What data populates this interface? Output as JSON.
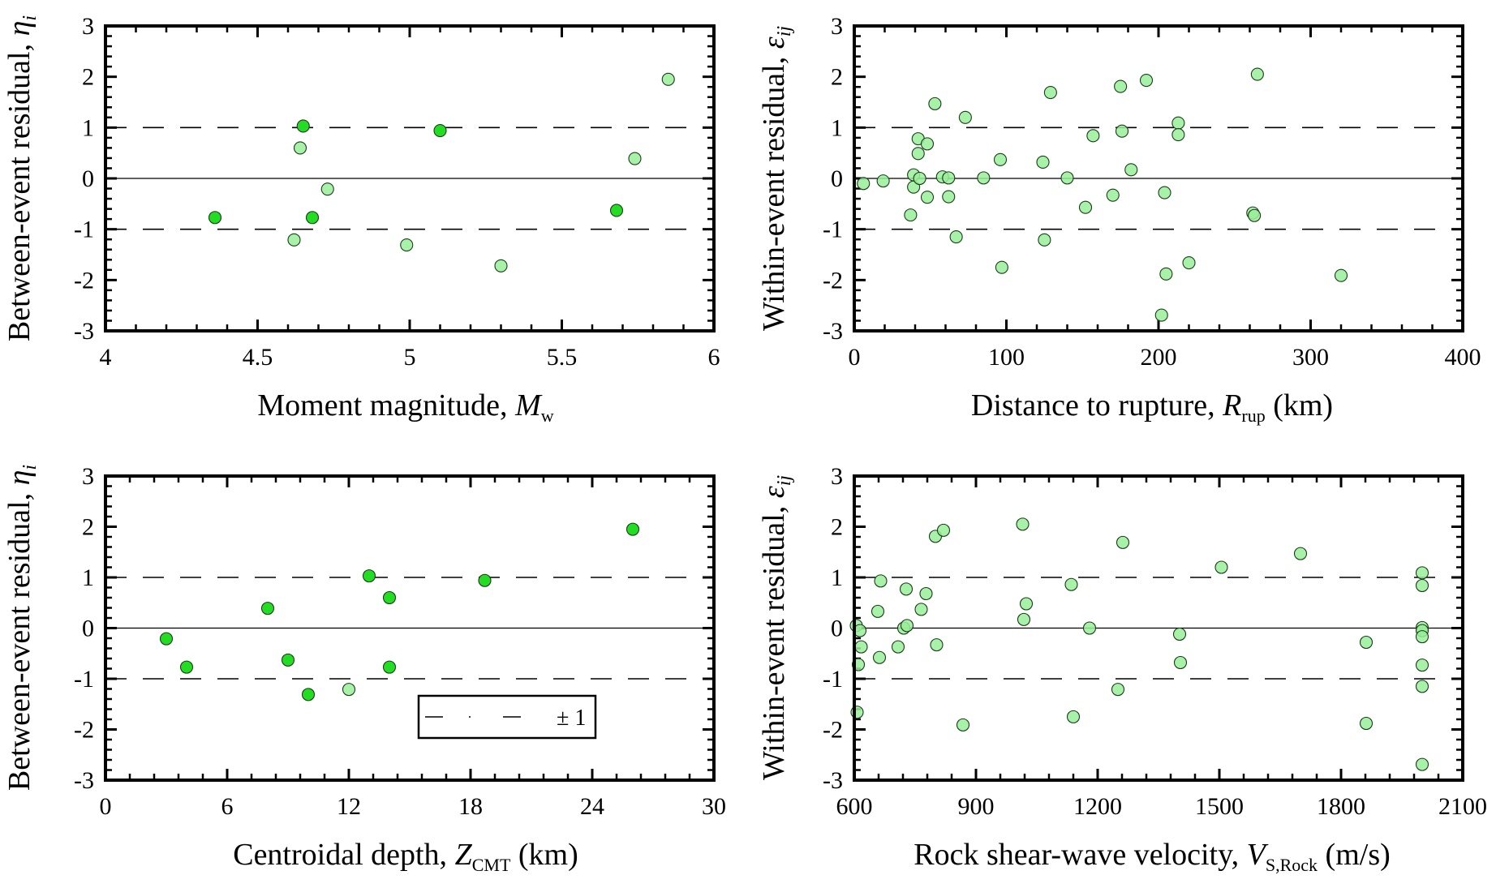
{
  "chart_data": [
    {
      "type": "scatter",
      "xlabel": "Moment magnitude, M_w",
      "xlabel_parts": {
        "main": "Moment magnitude, ",
        "symbol": "M",
        "sub": "w",
        "after": ""
      },
      "ylabel": "Between-event residual, η_i",
      "ylabel_parts": {
        "main": "Between-event residual, ",
        "symbol": "η",
        "sub": "i"
      },
      "xlim": [
        4,
        6
      ],
      "ylim": [
        -3,
        3
      ],
      "xticks": [
        "4",
        "4.5",
        "5",
        "5.5",
        "6"
      ],
      "yticks": [
        "-3",
        "-2",
        "-1",
        "0",
        "1",
        "2",
        "3"
      ],
      "reference_lines": {
        "solid": 0,
        "dashed": [
          1,
          -1
        ]
      },
      "points": [
        {
          "x": 4.36,
          "y": -0.77,
          "style": "dark"
        },
        {
          "x": 4.62,
          "y": -1.21,
          "style": "light"
        },
        {
          "x": 4.64,
          "y": 0.6,
          "style": "light"
        },
        {
          "x": 4.65,
          "y": 1.03,
          "style": "dark"
        },
        {
          "x": 4.68,
          "y": -0.77,
          "style": "dark"
        },
        {
          "x": 4.73,
          "y": -0.21,
          "style": "light"
        },
        {
          "x": 4.99,
          "y": -1.31,
          "style": "light"
        },
        {
          "x": 5.1,
          "y": 0.94,
          "style": "dark"
        },
        {
          "x": 5.3,
          "y": -1.72,
          "style": "light"
        },
        {
          "x": 5.68,
          "y": -0.63,
          "style": "dark"
        },
        {
          "x": 5.74,
          "y": 0.39,
          "style": "light"
        },
        {
          "x": 5.85,
          "y": 1.95,
          "style": "light"
        }
      ]
    },
    {
      "type": "scatter",
      "xlabel": "Distance to rupture, R_rup (km)",
      "xlabel_parts": {
        "main": "Distance to rupture, ",
        "symbol": "R",
        "sub": "rup",
        "after": " (km)"
      },
      "ylabel": "Within-event residual, ε_ij",
      "ylabel_parts": {
        "main": "Within-event residual, ",
        "symbol": "ε",
        "sub": "ij"
      },
      "xlim": [
        0,
        400
      ],
      "ylim": [
        -3,
        3
      ],
      "xticks": [
        "0",
        "100",
        "200",
        "300",
        "400"
      ],
      "yticks": [
        "-3",
        "-2",
        "-1",
        "0",
        "1",
        "2",
        "3"
      ],
      "reference_lines": {
        "solid": 0,
        "dashed": [
          1,
          -1
        ]
      },
      "points": [
        {
          "x": 6,
          "y": -0.1,
          "style": "light"
        },
        {
          "x": 19,
          "y": -0.05,
          "style": "light"
        },
        {
          "x": 37,
          "y": -0.72,
          "style": "light"
        },
        {
          "x": 39,
          "y": 0.07,
          "style": "light"
        },
        {
          "x": 39,
          "y": -0.17,
          "style": "light"
        },
        {
          "x": 42,
          "y": 0.78,
          "style": "light"
        },
        {
          "x": 42,
          "y": 0.49,
          "style": "light"
        },
        {
          "x": 43,
          "y": 0.0,
          "style": "light"
        },
        {
          "x": 48,
          "y": 0.68,
          "style": "light"
        },
        {
          "x": 48,
          "y": -0.37,
          "style": "light"
        },
        {
          "x": 53,
          "y": 1.47,
          "style": "light"
        },
        {
          "x": 58,
          "y": 0.03,
          "style": "light"
        },
        {
          "x": 62,
          "y": 0.01,
          "style": "light"
        },
        {
          "x": 62,
          "y": -0.36,
          "style": "light"
        },
        {
          "x": 67,
          "y": -1.15,
          "style": "light"
        },
        {
          "x": 73,
          "y": 1.2,
          "style": "light"
        },
        {
          "x": 85,
          "y": 0.01,
          "style": "light"
        },
        {
          "x": 96,
          "y": 0.37,
          "style": "light"
        },
        {
          "x": 97,
          "y": -1.75,
          "style": "light"
        },
        {
          "x": 124,
          "y": 0.32,
          "style": "light"
        },
        {
          "x": 125,
          "y": -1.21,
          "style": "light"
        },
        {
          "x": 129,
          "y": 1.69,
          "style": "light"
        },
        {
          "x": 140,
          "y": 0.01,
          "style": "light"
        },
        {
          "x": 152,
          "y": -0.57,
          "style": "light"
        },
        {
          "x": 157,
          "y": 0.84,
          "style": "light"
        },
        {
          "x": 170,
          "y": -0.33,
          "style": "light"
        },
        {
          "x": 175,
          "y": 1.81,
          "style": "light"
        },
        {
          "x": 176,
          "y": 0.93,
          "style": "light"
        },
        {
          "x": 182,
          "y": 0.17,
          "style": "light"
        },
        {
          "x": 192,
          "y": 1.93,
          "style": "light"
        },
        {
          "x": 202,
          "y": -2.69,
          "style": "light"
        },
        {
          "x": 204,
          "y": -0.28,
          "style": "light"
        },
        {
          "x": 205,
          "y": -1.88,
          "style": "light"
        },
        {
          "x": 213,
          "y": 1.09,
          "style": "light"
        },
        {
          "x": 213,
          "y": 0.86,
          "style": "light"
        },
        {
          "x": 220,
          "y": -1.66,
          "style": "light"
        },
        {
          "x": 262,
          "y": -0.68,
          "style": "light"
        },
        {
          "x": 263,
          "y": -0.73,
          "style": "light"
        },
        {
          "x": 265,
          "y": 2.05,
          "style": "light"
        },
        {
          "x": 320,
          "y": -1.91,
          "style": "light"
        }
      ]
    },
    {
      "type": "scatter",
      "xlabel": "Centroidal depth, Z_CMT (km)",
      "xlabel_parts": {
        "main": "Centroidal depth, ",
        "symbol": "Z",
        "sub": "CMT",
        "after": " (km)"
      },
      "ylabel": "Between-event residual, η_i",
      "ylabel_parts": {
        "main": "Between-event residual, ",
        "symbol": "η",
        "sub": "i"
      },
      "xlim": [
        0,
        30
      ],
      "ylim": [
        -3,
        3
      ],
      "xticks": [
        "0",
        "6",
        "12",
        "18",
        "24",
        "30"
      ],
      "yticks": [
        "-3",
        "-2",
        "-1",
        "0",
        "1",
        "2",
        "3"
      ],
      "reference_lines": {
        "solid": 0,
        "dashed": [
          1,
          -1
        ]
      },
      "legend": {
        "label": "± 1",
        "position": "lower-right"
      },
      "points": [
        {
          "x": 3.0,
          "y": -0.21,
          "style": "dark"
        },
        {
          "x": 4.0,
          "y": -0.77,
          "style": "dark"
        },
        {
          "x": 8.0,
          "y": 0.39,
          "style": "dark"
        },
        {
          "x": 9.0,
          "y": -0.63,
          "style": "dark"
        },
        {
          "x": 10.0,
          "y": -1.31,
          "style": "dark"
        },
        {
          "x": 12.0,
          "y": -1.21,
          "style": "light"
        },
        {
          "x": 13.0,
          "y": 1.03,
          "style": "dark"
        },
        {
          "x": 14.0,
          "y": 0.6,
          "style": "dark"
        },
        {
          "x": 14.0,
          "y": -0.77,
          "style": "dark"
        },
        {
          "x": 18.7,
          "y": 0.94,
          "style": "dark"
        },
        {
          "x": 26.0,
          "y": 1.95,
          "style": "dark"
        }
      ]
    },
    {
      "type": "scatter",
      "xlabel": "Rock shear-wave velocity, V_S,Rock (m/s)",
      "xlabel_parts": {
        "main": "Rock shear-wave velocity, ",
        "symbol": "V",
        "sub": "S,Rock",
        "after": " (m/s)"
      },
      "ylabel": "Within-event residual, ε_ij",
      "ylabel_parts": {
        "main": "Within-event residual, ",
        "symbol": "ε",
        "sub": "ij"
      },
      "xlim": [
        600,
        2100
      ],
      "ylim": [
        -3,
        3
      ],
      "xticks": [
        "600",
        "900",
        "1200",
        "1500",
        "1800",
        "2100"
      ],
      "yticks": [
        "-3",
        "-2",
        "-1",
        "0",
        "1",
        "2",
        "3"
      ],
      "reference_lines": {
        "solid": 0,
        "dashed": [
          1,
          -1
        ]
      },
      "points": [
        {
          "x": 605,
          "y": 0.05,
          "style": "light"
        },
        {
          "x": 607,
          "y": -1.66,
          "style": "light"
        },
        {
          "x": 610,
          "y": -0.72,
          "style": "light"
        },
        {
          "x": 614,
          "y": -0.05,
          "style": "light"
        },
        {
          "x": 617,
          "y": -0.37,
          "style": "light"
        },
        {
          "x": 658,
          "y": 0.33,
          "style": "light"
        },
        {
          "x": 662,
          "y": -0.58,
          "style": "light"
        },
        {
          "x": 665,
          "y": 0.93,
          "style": "light"
        },
        {
          "x": 708,
          "y": -0.37,
          "style": "light"
        },
        {
          "x": 722,
          "y": 0.0,
          "style": "light"
        },
        {
          "x": 728,
          "y": 0.77,
          "style": "light"
        },
        {
          "x": 730,
          "y": 0.05,
          "style": "light"
        },
        {
          "x": 765,
          "y": 0.37,
          "style": "light"
        },
        {
          "x": 777,
          "y": 0.68,
          "style": "light"
        },
        {
          "x": 800,
          "y": 1.81,
          "style": "light"
        },
        {
          "x": 803,
          "y": -0.33,
          "style": "light"
        },
        {
          "x": 820,
          "y": 1.93,
          "style": "light"
        },
        {
          "x": 868,
          "y": -1.91,
          "style": "light"
        },
        {
          "x": 1015,
          "y": 2.05,
          "style": "light"
        },
        {
          "x": 1018,
          "y": 0.17,
          "style": "light"
        },
        {
          "x": 1024,
          "y": 0.48,
          "style": "light"
        },
        {
          "x": 1135,
          "y": 0.86,
          "style": "light"
        },
        {
          "x": 1140,
          "y": -1.75,
          "style": "light"
        },
        {
          "x": 1180,
          "y": 0.0,
          "style": "light"
        },
        {
          "x": 1250,
          "y": -1.21,
          "style": "light"
        },
        {
          "x": 1262,
          "y": 1.69,
          "style": "light"
        },
        {
          "x": 1402,
          "y": -0.12,
          "style": "light"
        },
        {
          "x": 1404,
          "y": -0.68,
          "style": "light"
        },
        {
          "x": 1505,
          "y": 1.2,
          "style": "light"
        },
        {
          "x": 1700,
          "y": 1.47,
          "style": "light"
        },
        {
          "x": 1862,
          "y": -0.28,
          "style": "light"
        },
        {
          "x": 1862,
          "y": -1.88,
          "style": "light"
        },
        {
          "x": 2000,
          "y": 1.09,
          "style": "light"
        },
        {
          "x": 2000,
          "y": 0.84,
          "style": "light"
        },
        {
          "x": 2000,
          "y": 0.01,
          "style": "light"
        },
        {
          "x": 2000,
          "y": -0.05,
          "style": "light"
        },
        {
          "x": 2000,
          "y": -0.17,
          "style": "light"
        },
        {
          "x": 2000,
          "y": -0.73,
          "style": "light"
        },
        {
          "x": 2000,
          "y": -1.15,
          "style": "light"
        },
        {
          "x": 2000,
          "y": -2.69,
          "style": "light"
        }
      ]
    }
  ],
  "colors": {
    "dark_marker_fill": "#22dd22",
    "light_marker_fill": "#99ee99",
    "marker_stroke": "#1a3a1a",
    "axis": "#000000"
  }
}
